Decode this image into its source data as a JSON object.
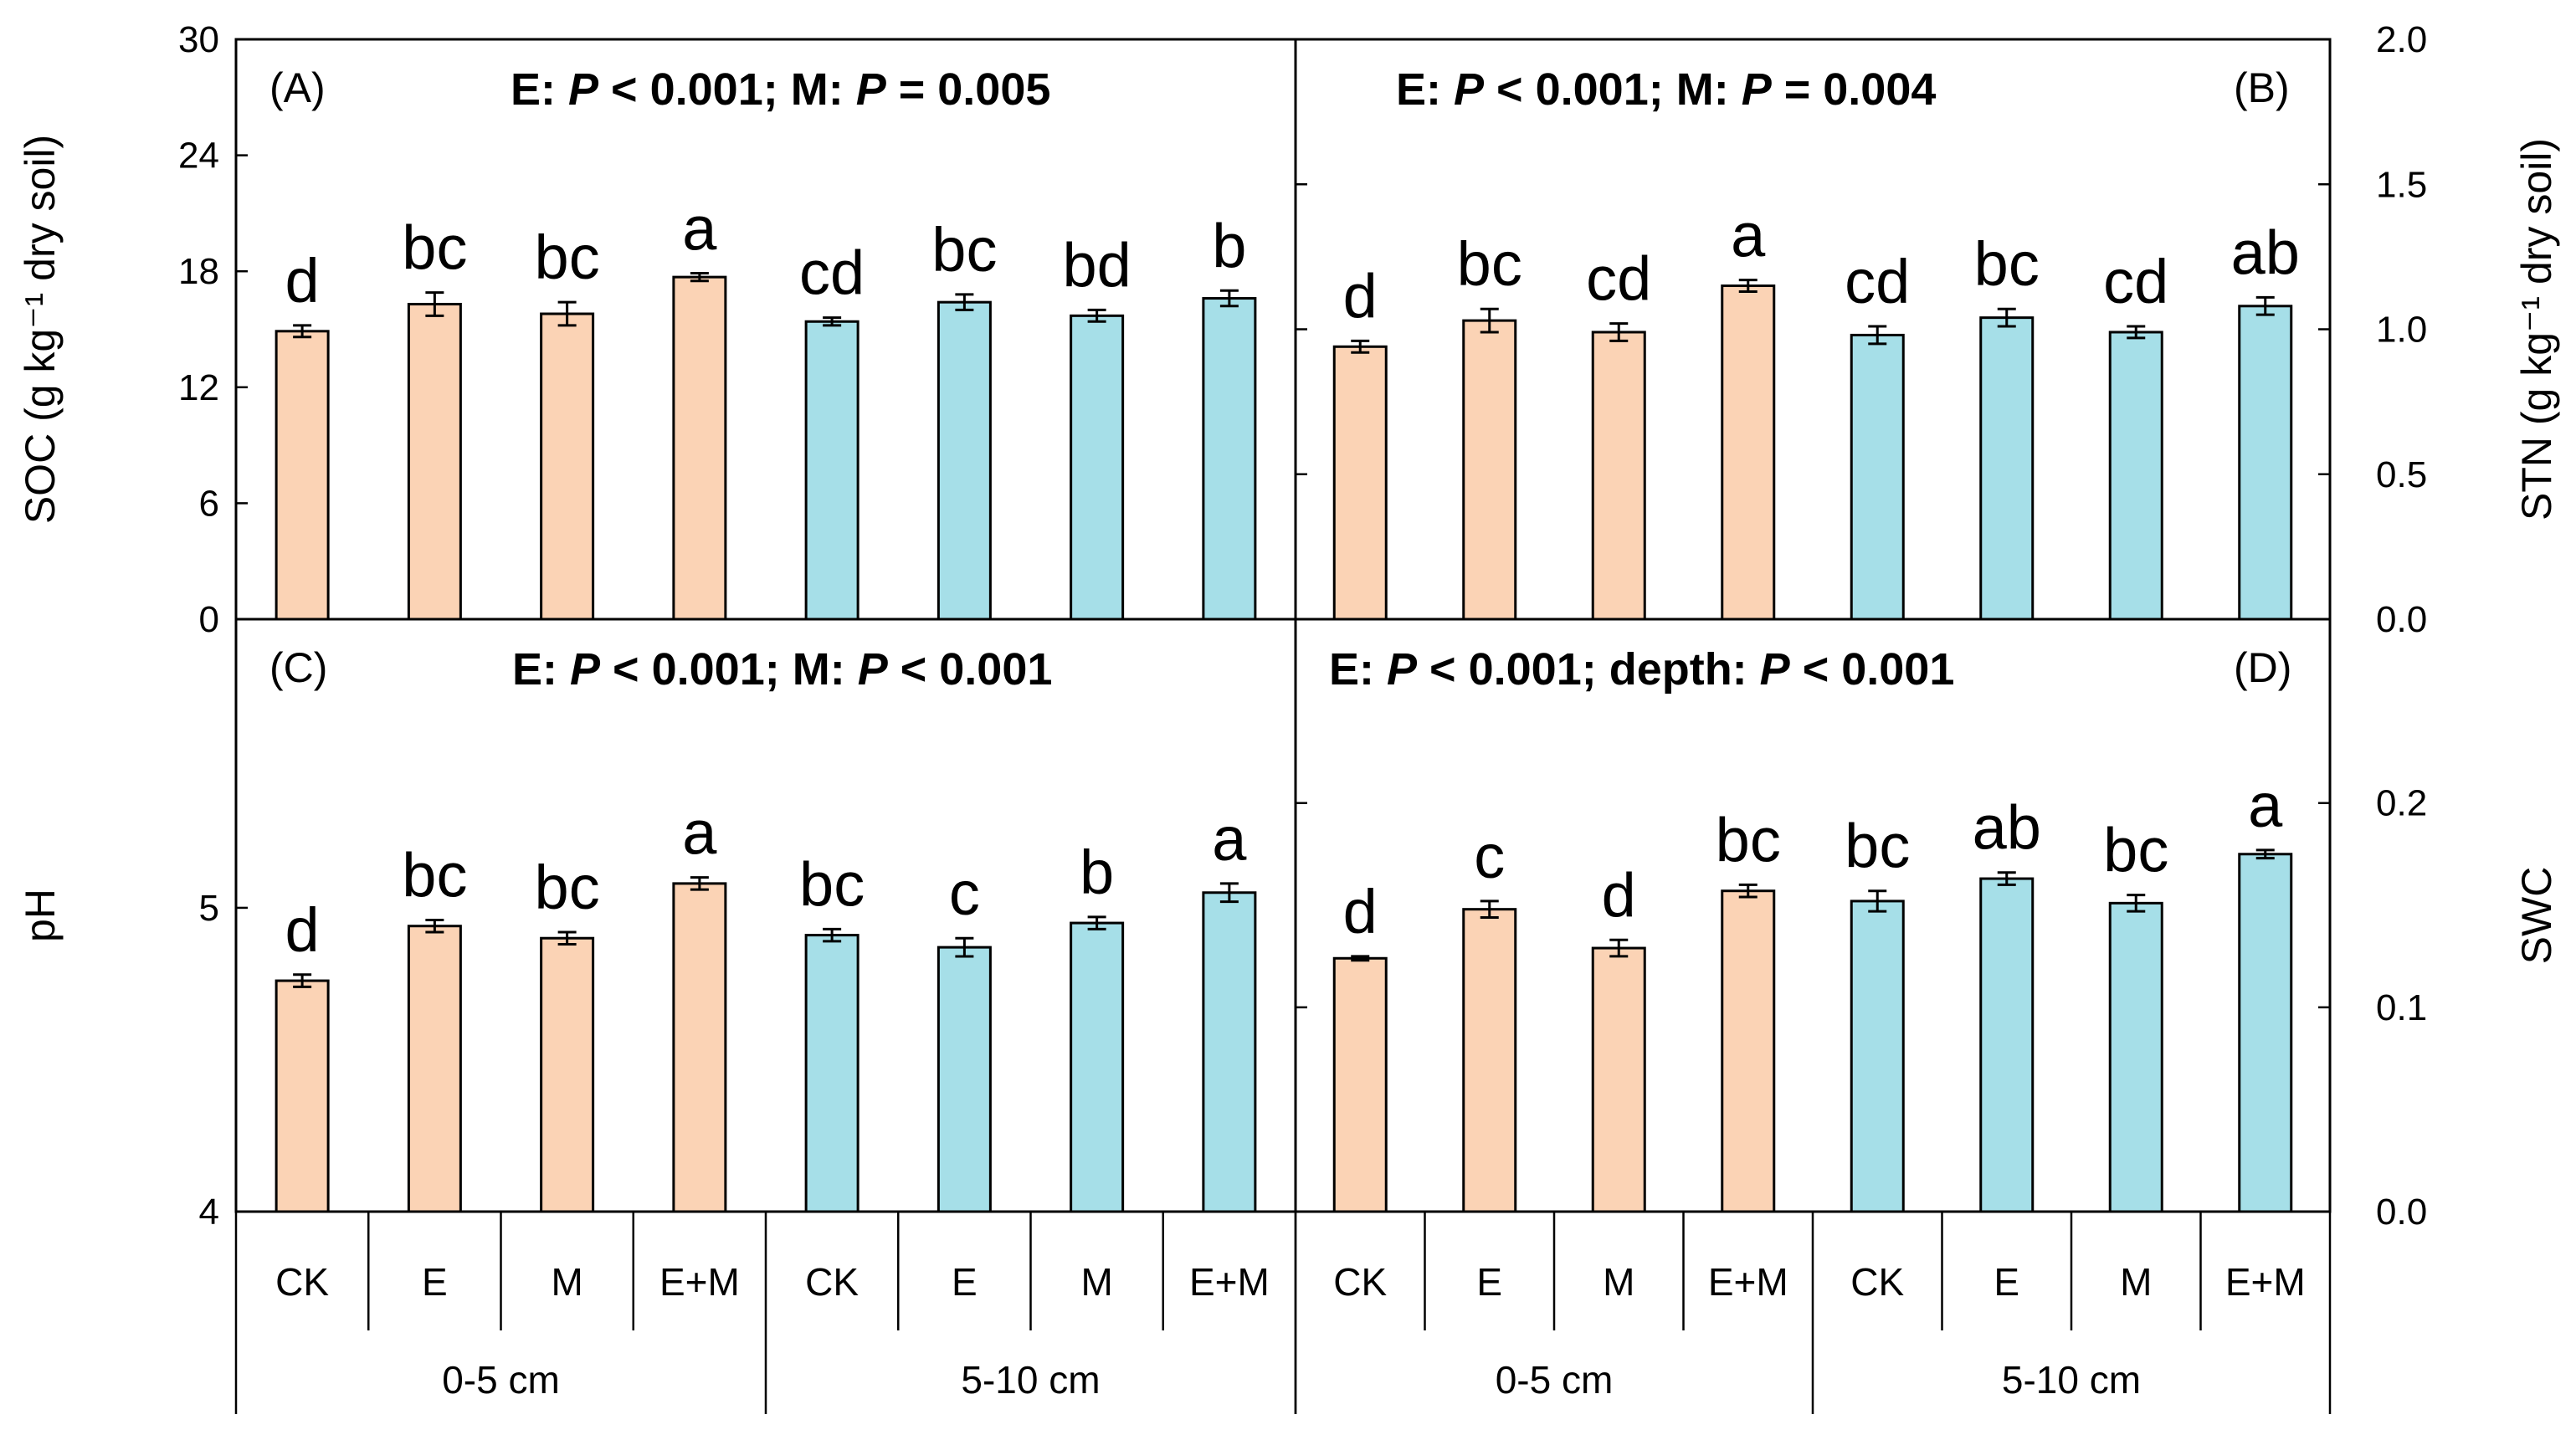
{
  "chart_data": {
    "type": "bar",
    "shared_x": {
      "categories": [
        "CK",
        "E",
        "M",
        "E+M",
        "CK",
        "E",
        "M",
        "E+M"
      ],
      "groups": [
        {
          "label": "0-5 cm",
          "count": 4
        },
        {
          "label": "5-10 cm",
          "count": 4
        }
      ]
    },
    "colors": {
      "depth_0_5": "#FBD3B5",
      "depth_5_10": "#A6DFE8",
      "stroke": "#000000"
    },
    "panels": [
      {
        "id": "A",
        "panel_label": "(A)",
        "stat_parts": [
          {
            "t": "E: ",
            "i": false
          },
          {
            "t": "P",
            "i": true
          },
          {
            "t": " < 0.001; M: ",
            "i": false
          },
          {
            "t": "P",
            "i": true
          },
          {
            "t": " = 0.005",
            "i": false
          }
        ],
        "ylabel": "SOC (g kg⁻¹ dry soil)",
        "y_axis_side": "left",
        "ylim": [
          0,
          30
        ],
        "yticks": [
          0,
          6,
          12,
          18,
          24,
          30
        ],
        "ytick_labels": [
          "0",
          "6",
          "12",
          "18",
          "24",
          "30"
        ],
        "values": [
          14.9,
          16.3,
          15.8,
          17.7,
          15.4,
          16.4,
          15.7,
          16.6
        ],
        "errors": [
          0.3,
          0.6,
          0.6,
          0.2,
          0.2,
          0.4,
          0.3,
          0.4
        ],
        "letters": [
          "d",
          "bc",
          "bc",
          "a",
          "cd",
          "bc",
          "bd",
          "b"
        ]
      },
      {
        "id": "B",
        "panel_label": "(B)",
        "stat_parts": [
          {
            "t": "E: ",
            "i": false
          },
          {
            "t": "P",
            "i": true
          },
          {
            "t": " < 0.001; M: ",
            "i": false
          },
          {
            "t": "P",
            "i": true
          },
          {
            "t": " = 0.004",
            "i": false
          }
        ],
        "ylabel": "STN (g kg⁻¹ dry soil)",
        "y_axis_side": "right",
        "ylim": [
          0,
          2.0
        ],
        "yticks": [
          0,
          0.5,
          1.0,
          1.5,
          2.0
        ],
        "ytick_labels": [
          "0.0",
          "0.5",
          "1.0",
          "1.5",
          "2.0"
        ],
        "values": [
          0.94,
          1.03,
          0.99,
          1.15,
          0.98,
          1.04,
          0.99,
          1.08
        ],
        "errors": [
          0.02,
          0.04,
          0.03,
          0.02,
          0.03,
          0.03,
          0.02,
          0.03
        ],
        "letters": [
          "d",
          "bc",
          "cd",
          "a",
          "cd",
          "bc",
          "cd",
          "ab"
        ]
      },
      {
        "id": "C",
        "panel_label": "(C)",
        "stat_parts": [
          {
            "t": "E: ",
            "i": false
          },
          {
            "t": "P",
            "i": true
          },
          {
            "t": " < 0.001; M: ",
            "i": false
          },
          {
            "t": "P",
            "i": true
          },
          {
            "t": " < 0.001",
            "i": false
          }
        ],
        "ylabel": "pH",
        "y_axis_side": "left",
        "ylim": [
          4,
          5.95
        ],
        "yticks": [
          4,
          5
        ],
        "ytick_labels": [
          "4",
          "5"
        ],
        "values": [
          4.76,
          4.94,
          4.9,
          5.08,
          4.91,
          4.87,
          4.95,
          5.05
        ],
        "errors": [
          0.02,
          0.02,
          0.02,
          0.02,
          0.02,
          0.03,
          0.02,
          0.03
        ],
        "letters": [
          "d",
          "bc",
          "bc",
          "a",
          "bc",
          "c",
          "b",
          "a"
        ]
      },
      {
        "id": "D",
        "panel_label": "(D)",
        "stat_parts": [
          {
            "t": "E: ",
            "i": false
          },
          {
            "t": "P",
            "i": true
          },
          {
            "t": " < 0.001; depth: ",
            "i": false
          },
          {
            "t": "P",
            "i": true
          },
          {
            "t": " < 0.001",
            "i": false
          }
        ],
        "ylabel": "SWC",
        "y_axis_side": "right",
        "ylim": [
          0,
          0.29
        ],
        "yticks": [
          0,
          0.1,
          0.2
        ],
        "ytick_labels": [
          "0.0",
          "0.1",
          "0.2"
        ],
        "values": [
          0.124,
          0.148,
          0.129,
          0.157,
          0.152,
          0.163,
          0.151,
          0.175
        ],
        "errors": [
          0.001,
          0.004,
          0.004,
          0.003,
          0.005,
          0.003,
          0.004,
          0.002
        ],
        "letters": [
          "d",
          "c",
          "d",
          "bc",
          "bc",
          "ab",
          "bc",
          "a"
        ]
      }
    ]
  }
}
